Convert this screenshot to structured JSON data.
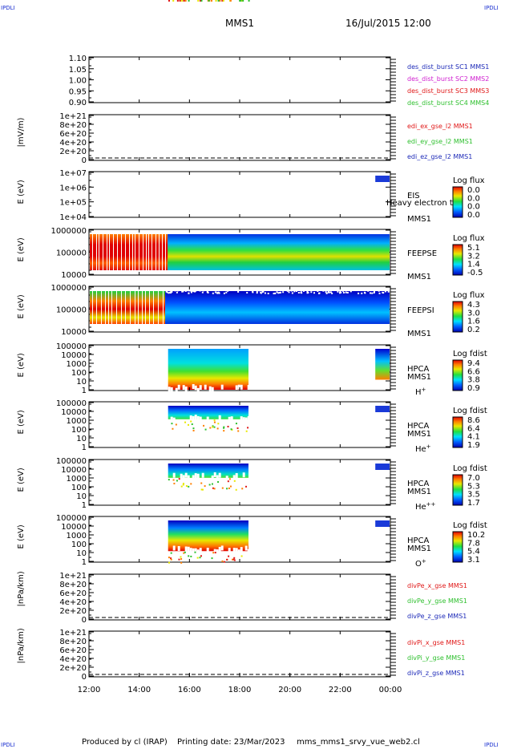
{
  "header": {
    "corner_label": "IPDLI",
    "mission": "MMS1",
    "datetime": "16/Jul/2015 12:00"
  },
  "footer": {
    "produced_by": "Produced by cl (IRAP)",
    "printing_date": "Printing date: 23/Mar/2023",
    "file_name": "mms_mms1_srvy_vue_web2.cl"
  },
  "colors": {
    "dark_blue": "#1d2ab8",
    "magenta": "#d020d0",
    "red": "#e01818",
    "green": "#30c030",
    "spectrogram_scale": [
      "#0000b0",
      "#0060ff",
      "#00e0ff",
      "#20e040",
      "#e8e800",
      "#ff8000",
      "#e00000"
    ]
  },
  "chart_data": {
    "type": "multi-panel time series and spectrograms",
    "x_axis": {
      "range": [
        "12:00",
        "00:00"
      ],
      "ticks": [
        "12:00",
        "14:00",
        "16:00",
        "18:00",
        "20:00",
        "22:00",
        "00:00"
      ]
    },
    "panels": [
      {
        "kind": "line",
        "ylabel": "",
        "yticks": [
          "1.10",
          "1.05",
          "1.00",
          "0.95",
          "0.90"
        ],
        "series": [
          {
            "name": "des_dist_burst SC1 MMS1",
            "color": "#1d2ab8"
          },
          {
            "name": "des_dist_burst SC2 MMS2",
            "color": "#d020d0"
          },
          {
            "name": "des_dist_burst SC3 MMS3",
            "color": "#e01818"
          },
          {
            "name": "des_dist_burst SC4 MMS4",
            "color": "#30c030"
          }
        ]
      },
      {
        "kind": "line",
        "ylabel": "|mV/m)",
        "yticks": [
          "1e+21",
          "8e+20",
          "6e+20",
          "4e+20",
          "2e+20",
          "0"
        ],
        "zero_line": true,
        "series": [
          {
            "name": "edi_ex_gse_l2 MMS1",
            "color": "#e01818"
          },
          {
            "name": "edi_ey_gse_l2 MMS1",
            "color": "#30c030"
          },
          {
            "name": "edi_ez_gse_l2 MMS1",
            "color": "#1d2ab8"
          }
        ]
      },
      {
        "kind": "spectrogram",
        "ylabel": "E (eV)",
        "yticks": [
          "1e+07",
          "1e+06",
          "1e+05",
          "1e+04"
        ],
        "instrument": "EIS",
        "instrument_sub": "Heavy electron to",
        "spacecraft": "MMS1",
        "species": "",
        "colorbar": {
          "label": "Log flux",
          "ticks": [
            "0.0",
            "0.0",
            "0.0",
            "0.0"
          ]
        }
      },
      {
        "kind": "spectrogram",
        "ylabel": "E (eV)",
        "yticks": [
          "1000000",
          "100000",
          "10000"
        ],
        "instrument": "FEEPSE",
        "instrument_sub": "",
        "spacecraft": "MMS1",
        "species": "",
        "colorbar": {
          "label": "Log flux",
          "ticks": [
            "5.1",
            "3.2",
            "1.4",
            "-0.5"
          ]
        }
      },
      {
        "kind": "spectrogram",
        "ylabel": "E (eV)",
        "yticks": [
          "1000000",
          "100000",
          "10000"
        ],
        "instrument": "FEEPSI",
        "instrument_sub": "",
        "spacecraft": "MMS1",
        "species": "",
        "colorbar": {
          "label": "Log flux",
          "ticks": [
            "4.3",
            "3.0",
            "1.6",
            "0.2"
          ]
        }
      },
      {
        "kind": "spectrogram",
        "ylabel": "E (eV)",
        "yticks": [
          "100000",
          "10000",
          "1000",
          "100",
          "10",
          "1"
        ],
        "instrument": "HPCA",
        "instrument_sub": "",
        "spacecraft": "MMS1",
        "species": "H+",
        "colorbar": {
          "label": "Log fdist",
          "ticks": [
            "9.4",
            "6.6",
            "3.8",
            "0.9"
          ]
        }
      },
      {
        "kind": "spectrogram",
        "ylabel": "E (eV)",
        "yticks": [
          "100000",
          "10000",
          "1000",
          "100",
          "10",
          "1"
        ],
        "instrument": "HPCA",
        "instrument_sub": "",
        "spacecraft": "MMS1",
        "species": "He+",
        "colorbar": {
          "label": "Log fdist",
          "ticks": [
            "8.6",
            "6.4",
            "4.1",
            "1.9"
          ]
        }
      },
      {
        "kind": "spectrogram",
        "ylabel": "E (eV)",
        "yticks": [
          "100000",
          "10000",
          "1000",
          "100",
          "10",
          "1"
        ],
        "instrument": "HPCA",
        "instrument_sub": "",
        "spacecraft": "MMS1",
        "species": "He++",
        "colorbar": {
          "label": "Log fdist",
          "ticks": [
            "7.0",
            "5.3",
            "3.5",
            "1.7"
          ]
        }
      },
      {
        "kind": "spectrogram",
        "ylabel": "E (eV)",
        "yticks": [
          "100000",
          "10000",
          "1000",
          "100",
          "10",
          "1"
        ],
        "instrument": "HPCA",
        "instrument_sub": "",
        "spacecraft": "MMS1",
        "species": "O+",
        "colorbar": {
          "label": "Log fdist",
          "ticks": [
            "10.2",
            "7.8",
            "5.4",
            "3.1"
          ]
        }
      },
      {
        "kind": "line",
        "ylabel": "|nPa/km)",
        "yticks": [
          "1e+21",
          "8e+20",
          "6e+20",
          "4e+20",
          "2e+20",
          "0"
        ],
        "zero_line": true,
        "series": [
          {
            "name": "divPe_x_gse MMS1",
            "color": "#e01818"
          },
          {
            "name": "divPe_y_gse MMS1",
            "color": "#30c030"
          },
          {
            "name": "divPe_z_gse MMS1",
            "color": "#1d2ab8"
          }
        ]
      },
      {
        "kind": "line",
        "ylabel": "|nPa/km)",
        "yticks": [
          "1e+21",
          "8e+20",
          "6e+20",
          "4e+20",
          "2e+20",
          "0"
        ],
        "zero_line": true,
        "series": [
          {
            "name": "divPi_x_gse MMS1",
            "color": "#e01818"
          },
          {
            "name": "divPi_y_gse MMS1",
            "color": "#30c030"
          },
          {
            "name": "divPi_z_gse MMS1",
            "color": "#1d2ab8"
          }
        ]
      }
    ]
  }
}
